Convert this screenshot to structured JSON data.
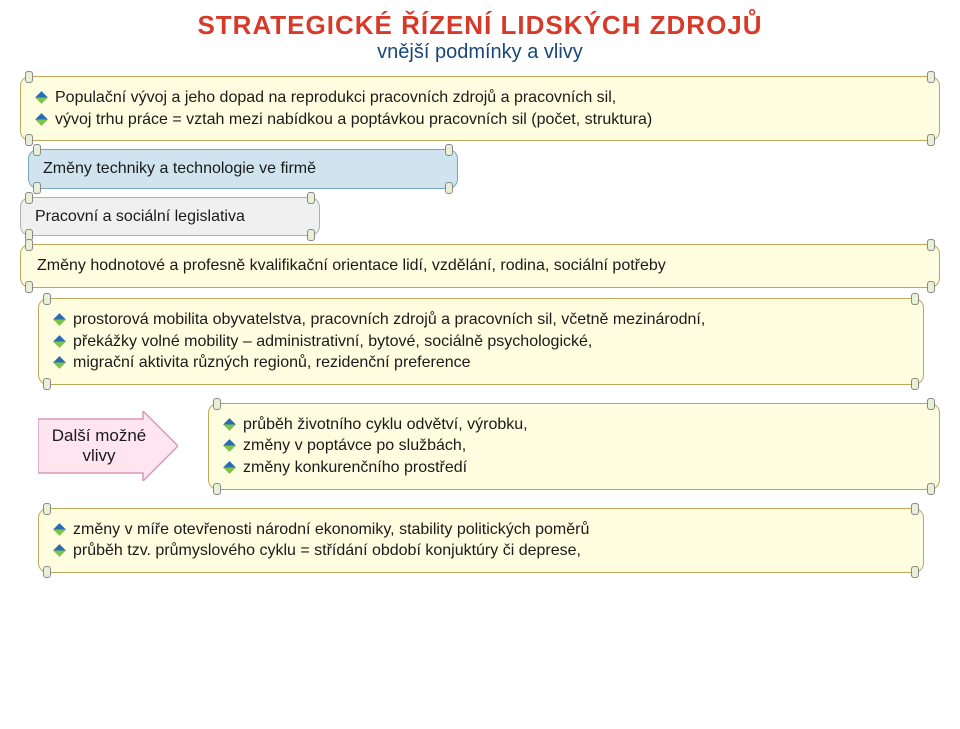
{
  "colors": {
    "title": "#d83a2a",
    "subtitle": "#18477a",
    "text": "#1a1a1a",
    "box_cream_bg": "#fffde0",
    "box_cream_border": "#bda85a",
    "box_blue_bg": "#cfe4ef",
    "box_blue_border": "#7aa7bd",
    "box_gray_bg": "#f0f0f0",
    "box_gray_border": "#b0b0b0",
    "box_pink_bg": "#ffe5f0",
    "box_pink_border": "#d69ab8",
    "bullet_a": "#2a6bb3",
    "bullet_b": "#7fc24b",
    "lug_bg": "#e8f0d8",
    "arrow_lug": "#e8d8d8"
  },
  "title": "STRATEGICKÉ  ŘÍZENÍ  LIDSKÝCH  ZDROJŮ",
  "subtitle": "vnější podmínky a vlivy",
  "box1": {
    "items": [
      "Populační vývoj a jeho dopad na reprodukci pracovních zdrojů a pracovních sil,",
      "vývoj trhu práce = vztah mezi nabídkou a poptávkou pracovních sil (počet, struktura)"
    ]
  },
  "box2": {
    "text": "Změny techniky a technologie ve firmě"
  },
  "box3": {
    "text": "Pracovní a sociální legislativa"
  },
  "box4": {
    "text": "Změny hodnotové a profesně kvalifikační orientace lidí, vzdělání, rodina, sociální potřeby"
  },
  "box5": {
    "items": [
      "prostorová mobilita obyvatelstva, pracovních zdrojů a pracovních sil, včetně mezinárodní,",
      "překážky volné mobility – administrativní, bytové, sociálně psychologické,",
      "migrační aktivita různých regionů, rezidenční preference"
    ]
  },
  "arrow": {
    "line1": "Další možné",
    "line2": "vlivy"
  },
  "box6": {
    "items": [
      "průběh životního cyklu odvětví, výrobku,",
      "změny v poptávce po službách,",
      "změny  konkurenčního prostředí"
    ]
  },
  "box7": {
    "items": [
      "změny v míře otevřenosti národní ekonomiky, stability politických poměrů",
      "průběh tzv. průmyslového cyklu = střídání období konjuktúry či deprese,"
    ]
  }
}
